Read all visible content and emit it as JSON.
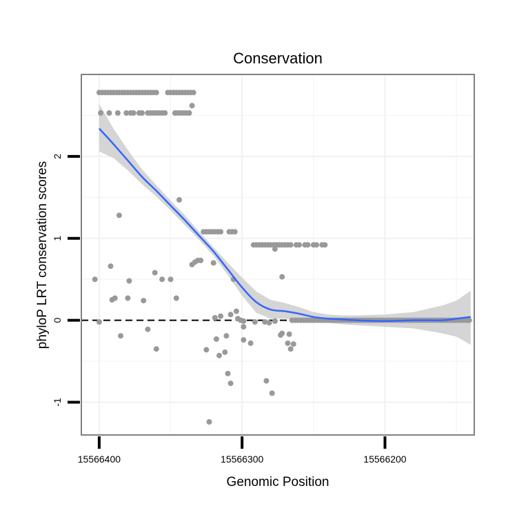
{
  "chart_data": {
    "type": "scatter",
    "title": "Conservation",
    "xlabel": "Genomic Position",
    "ylabel": "phyloP LRT conservation scores",
    "x_reversed": true,
    "xlim": [
      15566412.5,
      15566137.5
    ],
    "ylim": [
      -1.4,
      3.0
    ],
    "x_ticks": [
      15566400,
      15566300,
      15566200
    ],
    "x_tick_labels": [
      "15566400",
      "15566300",
      "15566200"
    ],
    "y_ticks": [
      -1,
      0,
      1,
      2
    ],
    "y_tick_labels": [
      "-1",
      "0",
      "1",
      "2"
    ],
    "reference_line": {
      "y": 0,
      "style": "dashed",
      "color": "#000000"
    },
    "grid": true,
    "colors": {
      "points": "#999999",
      "smooth_line": "#3366ff",
      "confidence_band": "#d0d0d0",
      "panel_border": "#808080"
    },
    "series": [
      {
        "name": "scores",
        "points": [
          [
            15566400,
            2.78
          ],
          [
            15566398,
            2.78
          ],
          [
            15566396,
            2.78
          ],
          [
            15566394,
            2.78
          ],
          [
            15566392,
            2.78
          ],
          [
            15566390,
            2.78
          ],
          [
            15566388,
            2.78
          ],
          [
            15566386,
            2.78
          ],
          [
            15566384,
            2.78
          ],
          [
            15566382,
            2.78
          ],
          [
            15566380,
            2.78
          ],
          [
            15566378,
            2.78
          ],
          [
            15566376,
            2.78
          ],
          [
            15566374,
            2.78
          ],
          [
            15566372,
            2.78
          ],
          [
            15566370,
            2.78
          ],
          [
            15566368,
            2.78
          ],
          [
            15566366,
            2.78
          ],
          [
            15566364,
            2.78
          ],
          [
            15566362,
            2.78
          ],
          [
            15566360,
            2.78
          ],
          [
            15566352,
            2.78
          ],
          [
            15566350,
            2.78
          ],
          [
            15566348,
            2.78
          ],
          [
            15566346,
            2.78
          ],
          [
            15566344,
            2.78
          ],
          [
            15566342,
            2.78
          ],
          [
            15566340,
            2.78
          ],
          [
            15566338,
            2.78
          ],
          [
            15566336,
            2.78
          ],
          [
            15566334,
            2.78
          ],
          [
            15566399,
            2.53
          ],
          [
            15566393,
            2.53
          ],
          [
            15566387,
            2.53
          ],
          [
            15566381,
            2.53
          ],
          [
            15566378,
            2.53
          ],
          [
            15566376,
            2.53
          ],
          [
            15566372,
            2.53
          ],
          [
            15566370,
            2.53
          ],
          [
            15566366,
            2.53
          ],
          [
            15566364,
            2.53
          ],
          [
            15566362,
            2.53
          ],
          [
            15566360,
            2.53
          ],
          [
            15566358,
            2.53
          ],
          [
            15566356,
            2.53
          ],
          [
            15566354,
            2.53
          ],
          [
            15566347,
            2.53
          ],
          [
            15566345,
            2.53
          ],
          [
            15566343,
            2.53
          ],
          [
            15566341,
            2.53
          ],
          [
            15566339,
            2.53
          ],
          [
            15566337,
            2.53
          ],
          [
            15566335,
            2.62
          ],
          [
            15566386,
            1.28
          ],
          [
            15566344,
            1.47
          ],
          [
            15566327,
            1.08
          ],
          [
            15566325,
            1.08
          ],
          [
            15566323,
            1.08
          ],
          [
            15566321,
            1.08
          ],
          [
            15566319,
            1.08
          ],
          [
            15566317,
            1.08
          ],
          [
            15566315,
            1.08
          ],
          [
            15566309,
            1.08
          ],
          [
            15566307,
            1.08
          ],
          [
            15566305,
            1.08
          ],
          [
            15566292,
            0.92
          ],
          [
            15566290,
            0.92
          ],
          [
            15566288,
            0.92
          ],
          [
            15566286,
            0.92
          ],
          [
            15566284,
            0.92
          ],
          [
            15566282,
            0.92
          ],
          [
            15566280,
            0.92
          ],
          [
            15566278,
            0.92
          ],
          [
            15566276,
            0.92
          ],
          [
            15566274,
            0.92
          ],
          [
            15566272,
            0.92
          ],
          [
            15566270,
            0.92
          ],
          [
            15566268,
            0.92
          ],
          [
            15566266,
            0.92
          ],
          [
            15566262,
            0.92
          ],
          [
            15566260,
            0.92
          ],
          [
            15566256,
            0.92
          ],
          [
            15566254,
            0.92
          ],
          [
            15566250,
            0.92
          ],
          [
            15566248,
            0.92
          ],
          [
            15566244,
            0.92
          ],
          [
            15566242,
            0.92
          ],
          [
            15566277,
            0.87
          ],
          [
            15566335,
            0.68
          ],
          [
            15566333,
            0.71
          ],
          [
            15566331,
            0.73
          ],
          [
            15566329,
            0.73
          ],
          [
            15566320,
            0.7
          ],
          [
            15566392,
            0.66
          ],
          [
            15566403,
            0.5
          ],
          [
            15566379,
            0.48
          ],
          [
            15566356,
            0.5
          ],
          [
            15566361,
            0.58
          ],
          [
            15566350,
            0.5
          ],
          [
            15566306,
            0.5
          ],
          [
            15566272,
            0.53
          ],
          [
            15566391,
            0.25
          ],
          [
            15566389,
            0.27
          ],
          [
            15566380,
            0.27
          ],
          [
            15566369,
            0.24
          ],
          [
            15566346,
            0.27
          ],
          [
            15566400,
            -0.02
          ],
          [
            15566319,
            0.03
          ],
          [
            15566315,
            0.05
          ],
          [
            15566308,
            0.07
          ],
          [
            15566303,
            0.02
          ],
          [
            15566301,
            0.0
          ],
          [
            15566299,
            -0.01
          ],
          [
            15566304,
            0.11
          ],
          [
            15566299,
            -0.08
          ],
          [
            15566291,
            -0.02
          ],
          [
            15566284,
            -0.02
          ],
          [
            15566281,
            -0.03
          ],
          [
            15566277,
            -0.01
          ],
          [
            15566385,
            -0.19
          ],
          [
            15566366,
            -0.11
          ],
          [
            15566360,
            -0.35
          ],
          [
            15566325,
            -0.36
          ],
          [
            15566318,
            -0.23
          ],
          [
            15566311,
            -0.19
          ],
          [
            15566299,
            -0.24
          ],
          [
            15566294,
            -0.28
          ],
          [
            15566316,
            -0.43
          ],
          [
            15566312,
            -0.39
          ],
          [
            15566273,
            -0.18
          ],
          [
            15566272,
            -0.16
          ],
          [
            15566268,
            -0.28
          ],
          [
            15566267,
            -0.17
          ],
          [
            15566266,
            -0.35
          ],
          [
            15566264,
            -0.29
          ],
          [
            15566310,
            -0.65
          ],
          [
            15566308,
            -0.77
          ],
          [
            15566283,
            -0.74
          ],
          [
            15566279,
            -0.89
          ],
          [
            15566323,
            -1.24
          ]
        ]
      },
      {
        "name": "flat_tail_points",
        "description": "dense band of points at ~0 from 15566265 to 15566140",
        "x_range": [
          15566265,
          15566140
        ],
        "y": 0.0,
        "step": 2
      },
      {
        "name": "loess_fit",
        "x": [
          15566400,
          15566390,
          15566380,
          15566370,
          15566360,
          15566350,
          15566340,
          15566330,
          15566320,
          15566310,
          15566300,
          15566290,
          15566280,
          15566270,
          15566260,
          15566250,
          15566240,
          15566230,
          15566220,
          15566200,
          15566180,
          15566160,
          15566150,
          15566140
        ],
        "y": [
          2.34,
          2.15,
          1.95,
          1.75,
          1.58,
          1.4,
          1.22,
          1.03,
          0.84,
          0.62,
          0.4,
          0.22,
          0.13,
          0.11,
          0.08,
          0.04,
          0.02,
          0.01,
          0.0,
          -0.01,
          0.0,
          0.0,
          0.02,
          0.04
        ],
        "ci_low": [
          2.06,
          1.98,
          1.83,
          1.66,
          1.51,
          1.34,
          1.16,
          0.98,
          0.79,
          0.55,
          0.3,
          0.09,
          0.02,
          0.02,
          0.0,
          -0.02,
          -0.03,
          -0.05,
          -0.06,
          -0.08,
          -0.1,
          -0.16,
          -0.2,
          -0.3
        ],
        "ci_high": [
          2.64,
          2.34,
          2.08,
          1.84,
          1.65,
          1.46,
          1.28,
          1.08,
          0.89,
          0.7,
          0.52,
          0.35,
          0.25,
          0.21,
          0.16,
          0.1,
          0.07,
          0.06,
          0.06,
          0.07,
          0.1,
          0.18,
          0.24,
          0.36
        ]
      }
    ]
  }
}
